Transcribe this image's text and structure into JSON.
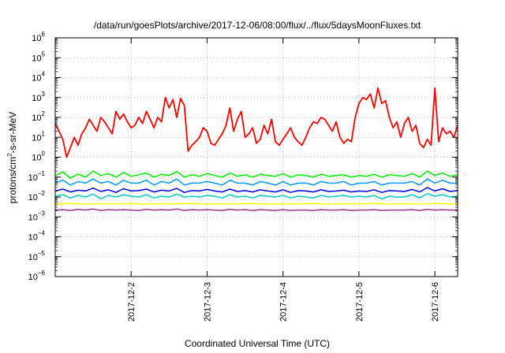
{
  "chart_data": {
    "type": "line",
    "title": "/data/run/goesPlots/archive/2017-12-06/08:00/flux/../flux/5daysMoonFluxes.txt",
    "xlabel": "Coordinated Universal Time (UTC)",
    "ylabel_main": "protons/cm",
    "ylabel_sup": "2",
    "ylabel_tail": "-s-sr-MeV",
    "y_scale": "log",
    "ylim_exp": [
      -6,
      6
    ],
    "x_tick_labels": [
      "2017-12-2",
      "2017-12-3",
      "2017-12-4",
      "2017-12-5",
      "2017-12-6"
    ],
    "x_tick_days": [
      1,
      2,
      3,
      4,
      5
    ],
    "xlim_days": [
      0,
      5.3
    ],
    "grid": true,
    "series": [
      {
        "color": "#ff0000",
        "x": [
          0,
          0.05,
          0.1,
          0.15,
          0.2,
          0.25,
          0.3,
          0.35,
          0.4,
          0.45,
          0.5,
          0.55,
          0.6,
          0.65,
          0.7,
          0.75,
          0.8,
          0.85,
          0.9,
          0.95,
          1,
          1.05,
          1.1,
          1.15,
          1.2,
          1.25,
          1.3,
          1.35,
          1.4,
          1.45,
          1.5,
          1.55,
          1.6,
          1.65,
          1.7,
          1.75,
          1.8,
          1.85,
          1.9,
          1.95,
          2,
          2.05,
          2.1,
          2.15,
          2.2,
          2.25,
          2.3,
          2.35,
          2.4,
          2.45,
          2.5,
          2.55,
          2.6,
          2.65,
          2.7,
          2.75,
          2.8,
          2.85,
          2.9,
          2.95,
          3,
          3.05,
          3.1,
          3.15,
          3.2,
          3.25,
          3.3,
          3.35,
          3.4,
          3.45,
          3.5,
          3.55,
          3.6,
          3.65,
          3.7,
          3.75,
          3.8,
          3.85,
          3.9,
          3.95,
          4,
          4.05,
          4.1,
          4.15,
          4.2,
          4.25,
          4.3,
          4.35,
          4.4,
          4.45,
          4.5,
          4.55,
          4.6,
          4.65,
          4.7,
          4.75,
          4.8,
          4.85,
          4.9,
          4.95,
          5,
          5.05,
          5.1,
          5.15,
          5.2,
          5.25,
          5.3
        ],
        "y": [
          50,
          20,
          8,
          1,
          3,
          10,
          4,
          15,
          30,
          80,
          40,
          20,
          100,
          60,
          30,
          15,
          200,
          80,
          150,
          60,
          30,
          40,
          100,
          50,
          200,
          80,
          30,
          100,
          60,
          1000,
          300,
          800,
          100,
          900,
          400,
          2,
          4,
          6,
          10,
          30,
          20,
          5,
          4,
          8,
          15,
          40,
          300,
          20,
          80,
          200,
          10,
          15,
          30,
          5,
          8,
          40,
          15,
          80,
          6,
          4,
          8,
          15,
          30,
          10,
          6,
          4,
          10,
          30,
          60,
          50,
          100,
          80,
          40,
          20,
          60,
          10,
          5,
          8,
          6,
          100,
          500,
          1000,
          800,
          1500,
          300,
          3000,
          500,
          700,
          100,
          30,
          60,
          10,
          50,
          100,
          20,
          40,
          5,
          3,
          8,
          4,
          3000,
          6,
          30,
          15,
          20,
          10,
          40
        ]
      },
      {
        "color": "#00ee00",
        "x": [
          0,
          0.1,
          0.2,
          0.3,
          0.4,
          0.5,
          0.6,
          0.7,
          0.8,
          0.9,
          1,
          1.1,
          1.2,
          1.3,
          1.4,
          1.5,
          1.6,
          1.7,
          1.8,
          1.9,
          2,
          2.1,
          2.2,
          2.3,
          2.4,
          2.5,
          2.6,
          2.7,
          2.8,
          2.9,
          3,
          3.1,
          3.2,
          3.3,
          3.4,
          3.5,
          3.6,
          3.7,
          3.8,
          3.9,
          4,
          4.1,
          4.2,
          4.3,
          4.4,
          4.5,
          4.6,
          4.7,
          4.8,
          4.9,
          5,
          5.1,
          5.2,
          5.3
        ],
        "y": [
          0.12,
          0.18,
          0.09,
          0.14,
          0.1,
          0.2,
          0.12,
          0.15,
          0.1,
          0.17,
          0.11,
          0.13,
          0.16,
          0.1,
          0.14,
          0.12,
          0.19,
          0.1,
          0.13,
          0.11,
          0.15,
          0.12,
          0.1,
          0.16,
          0.11,
          0.13,
          0.1,
          0.14,
          0.12,
          0.11,
          0.15,
          0.1,
          0.13,
          0.12,
          0.1,
          0.14,
          0.11,
          0.12,
          0.13,
          0.1,
          0.12,
          0.11,
          0.14,
          0.1,
          0.13,
          0.12,
          0.11,
          0.15,
          0.1,
          0.2,
          0.12,
          0.16,
          0.11,
          0.13
        ]
      },
      {
        "color": "#0099ff",
        "x": [
          0,
          0.1,
          0.2,
          0.3,
          0.4,
          0.5,
          0.6,
          0.7,
          0.8,
          0.9,
          1,
          1.1,
          1.2,
          1.3,
          1.4,
          1.5,
          1.6,
          1.7,
          1.8,
          1.9,
          2,
          2.1,
          2.2,
          2.3,
          2.4,
          2.5,
          2.6,
          2.7,
          2.8,
          2.9,
          3,
          3.1,
          3.2,
          3.3,
          3.4,
          3.5,
          3.6,
          3.7,
          3.8,
          3.9,
          4,
          4.1,
          4.2,
          4.3,
          4.4,
          4.5,
          4.6,
          4.7,
          4.8,
          4.9,
          5,
          5.1,
          5.2,
          5.3
        ],
        "y": [
          0.05,
          0.07,
          0.04,
          0.06,
          0.05,
          0.08,
          0.05,
          0.06,
          0.04,
          0.07,
          0.05,
          0.05,
          0.07,
          0.04,
          0.06,
          0.05,
          0.08,
          0.04,
          0.05,
          0.05,
          0.06,
          0.05,
          0.04,
          0.07,
          0.05,
          0.05,
          0.04,
          0.06,
          0.05,
          0.04,
          0.06,
          0.04,
          0.05,
          0.05,
          0.04,
          0.06,
          0.05,
          0.05,
          0.06,
          0.04,
          0.05,
          0.05,
          0.06,
          0.04,
          0.05,
          0.05,
          0.05,
          0.06,
          0.04,
          0.08,
          0.05,
          0.07,
          0.05,
          0.05
        ]
      },
      {
        "color": "#0000ee",
        "x": [
          0,
          0.1,
          0.2,
          0.3,
          0.4,
          0.5,
          0.6,
          0.7,
          0.8,
          0.9,
          1,
          1.1,
          1.2,
          1.3,
          1.4,
          1.5,
          1.6,
          1.7,
          1.8,
          1.9,
          2,
          2.1,
          2.2,
          2.3,
          2.4,
          2.5,
          2.6,
          2.7,
          2.8,
          2.9,
          3,
          3.1,
          3.2,
          3.3,
          3.4,
          3.5,
          3.6,
          3.7,
          3.8,
          3.9,
          4,
          4.1,
          4.2,
          4.3,
          4.4,
          4.5,
          4.6,
          4.7,
          4.8,
          4.9,
          5,
          5.1,
          5.2,
          5.3
        ],
        "y": [
          0.02,
          0.025,
          0.018,
          0.022,
          0.02,
          0.028,
          0.019,
          0.023,
          0.017,
          0.026,
          0.02,
          0.021,
          0.025,
          0.018,
          0.022,
          0.02,
          0.027,
          0.017,
          0.021,
          0.02,
          0.024,
          0.02,
          0.018,
          0.025,
          0.019,
          0.021,
          0.018,
          0.023,
          0.02,
          0.018,
          0.023,
          0.017,
          0.021,
          0.02,
          0.018,
          0.023,
          0.019,
          0.02,
          0.022,
          0.018,
          0.02,
          0.019,
          0.023,
          0.017,
          0.021,
          0.02,
          0.019,
          0.024,
          0.018,
          0.03,
          0.02,
          0.026,
          0.019,
          0.021
        ]
      },
      {
        "color": "#00cccc",
        "x": [
          0,
          0.1,
          0.2,
          0.3,
          0.4,
          0.5,
          0.6,
          0.7,
          0.8,
          0.9,
          1,
          1.1,
          1.2,
          1.3,
          1.4,
          1.5,
          1.6,
          1.7,
          1.8,
          1.9,
          2,
          2.1,
          2.2,
          2.3,
          2.4,
          2.5,
          2.6,
          2.7,
          2.8,
          2.9,
          3,
          3.1,
          3.2,
          3.3,
          3.4,
          3.5,
          3.6,
          3.7,
          3.8,
          3.9,
          4,
          4.1,
          4.2,
          4.3,
          4.4,
          4.5,
          4.6,
          4.7,
          4.8,
          4.9,
          5,
          5.1,
          5.2,
          5.3
        ],
        "y": [
          0.011,
          0.013,
          0.009,
          0.012,
          0.01,
          0.014,
          0.008,
          0.012,
          0.01,
          0.013,
          0.011,
          0.01,
          0.013,
          0.009,
          0.011,
          0.01,
          0.014,
          0.01,
          0.011,
          0.01,
          0.012,
          0.011,
          0.009,
          0.013,
          0.01,
          0.011,
          0.009,
          0.012,
          0.011,
          0.01,
          0.012,
          0.009,
          0.011,
          0.01,
          0.009,
          0.012,
          0.01,
          0.011,
          0.012,
          0.01,
          0.011,
          0.01,
          0.012,
          0.008,
          0.011,
          0.01,
          0.01,
          0.013,
          0.009,
          0.015,
          0.011,
          0.013,
          0.01,
          0.011
        ]
      },
      {
        "color": "#ffff00",
        "x": [
          0,
          0.2,
          0.4,
          0.6,
          0.8,
          1,
          1.2,
          1.4,
          1.6,
          1.8,
          2,
          2.2,
          2.4,
          2.6,
          2.8,
          3,
          3.2,
          3.4,
          3.6,
          3.8,
          4,
          4.2,
          4.4,
          4.6,
          4.8,
          5,
          5.2,
          5.3
        ],
        "y": [
          0.0045,
          0.0047,
          0.0044,
          0.0046,
          0.0045,
          0.0047,
          0.0044,
          0.0046,
          0.0045,
          0.0047,
          0.0044,
          0.0046,
          0.0045,
          0.0047,
          0.0044,
          0.0046,
          0.0045,
          0.0047,
          0.0044,
          0.0046,
          0.0045,
          0.0047,
          0.0044,
          0.0046,
          0.0045,
          0.0047,
          0.0045,
          0.0046
        ]
      },
      {
        "color": "#993388",
        "x": [
          0,
          0.1,
          0.2,
          0.3,
          0.4,
          0.5,
          0.6,
          0.7,
          0.8,
          0.9,
          1,
          1.1,
          1.2,
          1.3,
          1.4,
          1.5,
          1.6,
          1.7,
          1.8,
          1.9,
          2,
          2.1,
          2.2,
          2.3,
          2.4,
          2.5,
          2.6,
          2.7,
          2.8,
          2.9,
          3,
          3.1,
          3.2,
          3.3,
          3.4,
          3.5,
          3.6,
          3.7,
          3.8,
          3.9,
          4,
          4.1,
          4.2,
          4.3,
          4.4,
          4.5,
          4.6,
          4.7,
          4.8,
          4.9,
          5,
          5.1,
          5.2,
          5.3
        ],
        "y": [
          0.0022,
          0.0023,
          0.0021,
          0.0024,
          0.0022,
          0.0025,
          0.0021,
          0.0023,
          0.0022,
          0.0023,
          0.0022,
          0.0021,
          0.0024,
          0.0022,
          0.0023,
          0.0022,
          0.0025,
          0.0021,
          0.0023,
          0.0022,
          0.0023,
          0.0022,
          0.0021,
          0.0024,
          0.0022,
          0.0023,
          0.0021,
          0.0023,
          0.0022,
          0.0021,
          0.0023,
          0.0021,
          0.0022,
          0.0022,
          0.0021,
          0.0023,
          0.0022,
          0.0022,
          0.0023,
          0.0021,
          0.0022,
          0.0022,
          0.0023,
          0.0021,
          0.0022,
          0.0022,
          0.0022,
          0.0023,
          0.0021,
          0.0024,
          0.0022,
          0.0023,
          0.0022,
          0.0022
        ]
      }
    ]
  }
}
